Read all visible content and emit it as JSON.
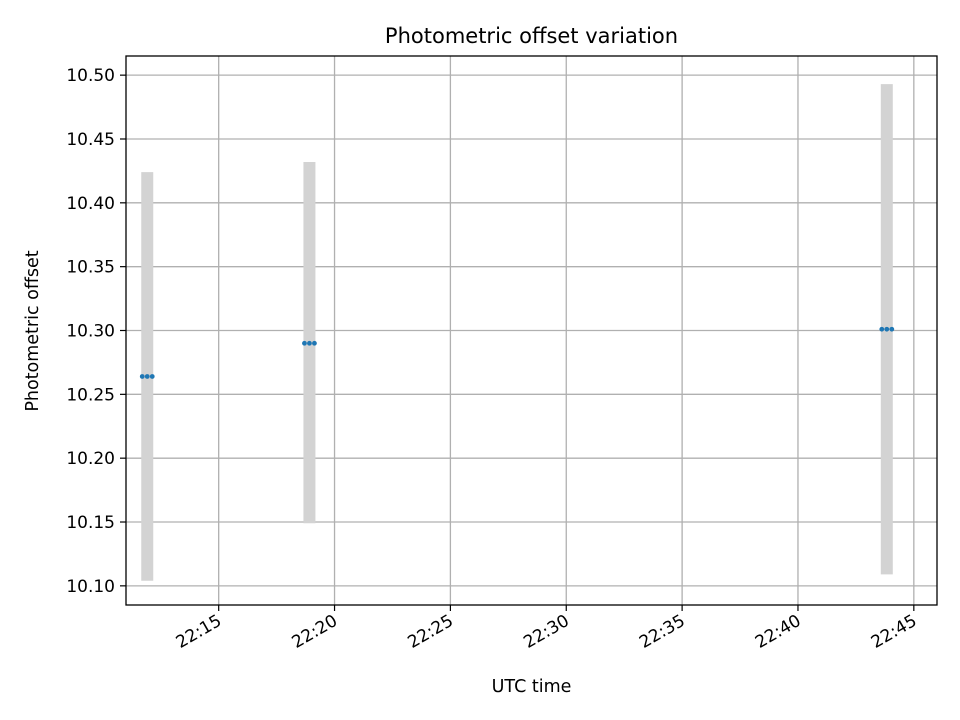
{
  "chart_data": {
    "type": "scatter",
    "title": "Photometric offset variation",
    "xlabel": "UTC time",
    "ylabel": "Photometric offset",
    "ylim": [
      10.085,
      10.515
    ],
    "xlim": [
      "22:11:00",
      "22:46:00"
    ],
    "grid": true,
    "y_ticks": [
      "10.10",
      "10.15",
      "10.20",
      "10.25",
      "10.30",
      "10.35",
      "10.40",
      "10.45",
      "10.50"
    ],
    "x_ticks": [
      "22:15",
      "22:20",
      "22:25",
      "22:30",
      "22:35",
      "22:40",
      "22:45"
    ],
    "errorbar_color": "#d3d3d3",
    "marker_color": "#1f77b4",
    "points": [
      {
        "x": "22:11:55",
        "y": 10.264,
        "y_low": 10.104,
        "y_high": 10.424
      },
      {
        "x": "22:18:55",
        "y": 10.29,
        "y_low": 10.149,
        "y_high": 10.432
      },
      {
        "x": "22:43:50",
        "y": 10.301,
        "y_low": 10.109,
        "y_high": 10.493
      }
    ]
  }
}
